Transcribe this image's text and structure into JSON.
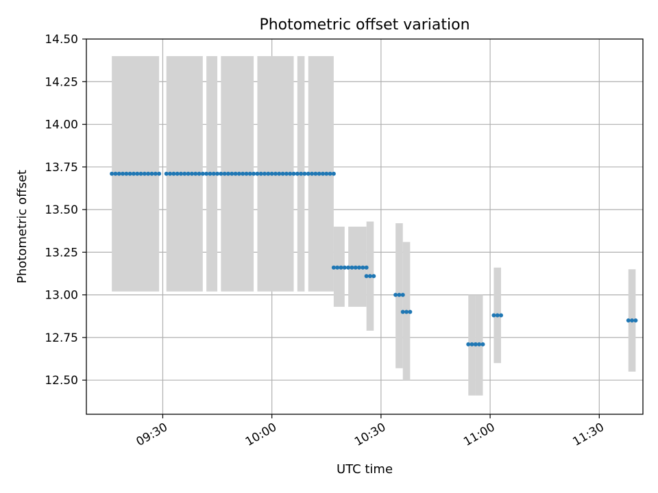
{
  "chart_data": {
    "type": "scatter",
    "title": "Photometric offset variation",
    "xlabel": "UTC time",
    "ylabel": "Photometric offset",
    "xlim": [
      "09:09",
      "11:42"
    ],
    "ylim": [
      12.3,
      14.5
    ],
    "xticks": [
      "09:30",
      "10:00",
      "10:30",
      "11:00",
      "11:30"
    ],
    "yticks": [
      "12.50",
      "12.75",
      "13.00",
      "13.25",
      "13.50",
      "13.75",
      "14.00",
      "14.25",
      "14.50"
    ],
    "grid": true,
    "colors": {
      "points": "#1f77b4",
      "bands": "#d3d3d3"
    },
    "bands": [
      {
        "x_start": "09:16",
        "x_end": "09:29",
        "y_low": 13.02,
        "y_high": 14.4
      },
      {
        "x_start": "09:31",
        "x_end": "09:41",
        "y_low": 13.02,
        "y_high": 14.4
      },
      {
        "x_start": "09:42",
        "x_end": "09:45",
        "y_low": 13.02,
        "y_high": 14.4
      },
      {
        "x_start": "09:46",
        "x_end": "09:55",
        "y_low": 13.02,
        "y_high": 14.4
      },
      {
        "x_start": "09:56",
        "x_end": "10:06",
        "y_low": 13.02,
        "y_high": 14.4
      },
      {
        "x_start": "10:07",
        "x_end": "10:09",
        "y_low": 13.02,
        "y_high": 14.4
      },
      {
        "x_start": "10:10",
        "x_end": "10:17",
        "y_low": 13.02,
        "y_high": 14.4
      },
      {
        "x_start": "10:17",
        "x_end": "10:20",
        "y_low": 12.93,
        "y_high": 13.4
      },
      {
        "x_start": "10:21",
        "x_end": "10:26",
        "y_low": 12.93,
        "y_high": 13.4
      },
      {
        "x_start": "10:26",
        "x_end": "10:28",
        "y_low": 12.79,
        "y_high": 13.43
      },
      {
        "x_start": "10:34",
        "x_end": "10:36",
        "y_low": 12.57,
        "y_high": 13.42
      },
      {
        "x_start": "10:36",
        "x_end": "10:38",
        "y_low": 12.5,
        "y_high": 13.31
      },
      {
        "x_start": "10:54",
        "x_end": "10:56",
        "y_low": 12.41,
        "y_high": 13.0
      },
      {
        "x_start": "10:56",
        "x_end": "10:58",
        "y_low": 12.41,
        "y_high": 13.0
      },
      {
        "x_start": "11:01",
        "x_end": "11:03",
        "y_low": 12.6,
        "y_high": 13.16
      },
      {
        "x_start": "11:38",
        "x_end": "11:40",
        "y_low": 12.55,
        "y_high": 13.15
      }
    ],
    "segments": [
      {
        "x_start": "09:16",
        "x_end": "09:29",
        "y": 13.71
      },
      {
        "x_start": "09:31",
        "x_end": "09:41",
        "y": 13.71
      },
      {
        "x_start": "09:42",
        "x_end": "09:45",
        "y": 13.71
      },
      {
        "x_start": "09:46",
        "x_end": "09:55",
        "y": 13.71
      },
      {
        "x_start": "09:56",
        "x_end": "10:06",
        "y": 13.71
      },
      {
        "x_start": "10:07",
        "x_end": "10:09",
        "y": 13.71
      },
      {
        "x_start": "10:10",
        "x_end": "10:17",
        "y": 13.71
      },
      {
        "x_start": "10:17",
        "x_end": "10:20",
        "y": 13.16
      },
      {
        "x_start": "10:21",
        "x_end": "10:26",
        "y": 13.16
      },
      {
        "x_start": "10:26",
        "x_end": "10:28",
        "y": 13.11
      },
      {
        "x_start": "10:34",
        "x_end": "10:36",
        "y": 13.0
      },
      {
        "x_start": "10:36",
        "x_end": "10:38",
        "y": 12.9
      },
      {
        "x_start": "10:54",
        "x_end": "10:56",
        "y": 12.71
      },
      {
        "x_start": "10:56",
        "x_end": "10:58",
        "y": 12.71
      },
      {
        "x_start": "11:01",
        "x_end": "11:03",
        "y": 12.88
      },
      {
        "x_start": "11:38",
        "x_end": "11:40",
        "y": 12.85
      }
    ]
  }
}
